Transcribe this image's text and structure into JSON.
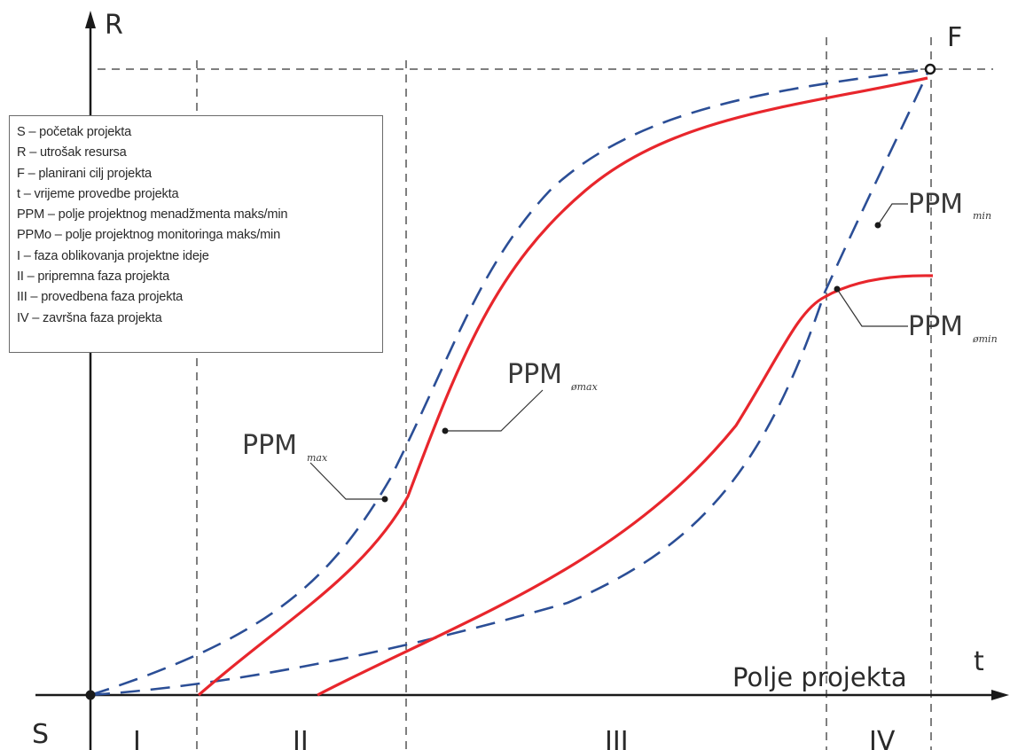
{
  "diagram": {
    "axis_r": "R",
    "axis_t": "t",
    "origin": "S",
    "target": "F",
    "field_label": "Polje projekta",
    "phases": [
      "I",
      "II",
      "III",
      "IV"
    ],
    "labels": {
      "ppm_max_main": "PPM",
      "ppm_max_sub": "max",
      "ppm_omax_main": "PPM",
      "ppm_omax_sub": "ømax",
      "ppm_min_main": "PPM",
      "ppm_min_sub": "min",
      "ppm_omin_main": "PPM",
      "ppm_omin_sub": "ømin"
    },
    "colors": {
      "monitoring_curve": "#e8262c",
      "management_curve": "#2b4e96",
      "axis": "#1a1a1a"
    }
  },
  "legend": {
    "items": [
      "S – početak projekta",
      "R – utrošak resursa",
      "F – planirani cilj projekta",
      "t – vrijeme provedbe projekta",
      "PPM – polje projektnog menadžmenta maks/min",
      "PPMo – polje projektnog monitoringa maks/min",
      "I – faza oblikovanja projektne ideje",
      "II – pripremna faza projekta",
      "III – provedbena faza projekta",
      "IV – završna faza projekta"
    ]
  }
}
